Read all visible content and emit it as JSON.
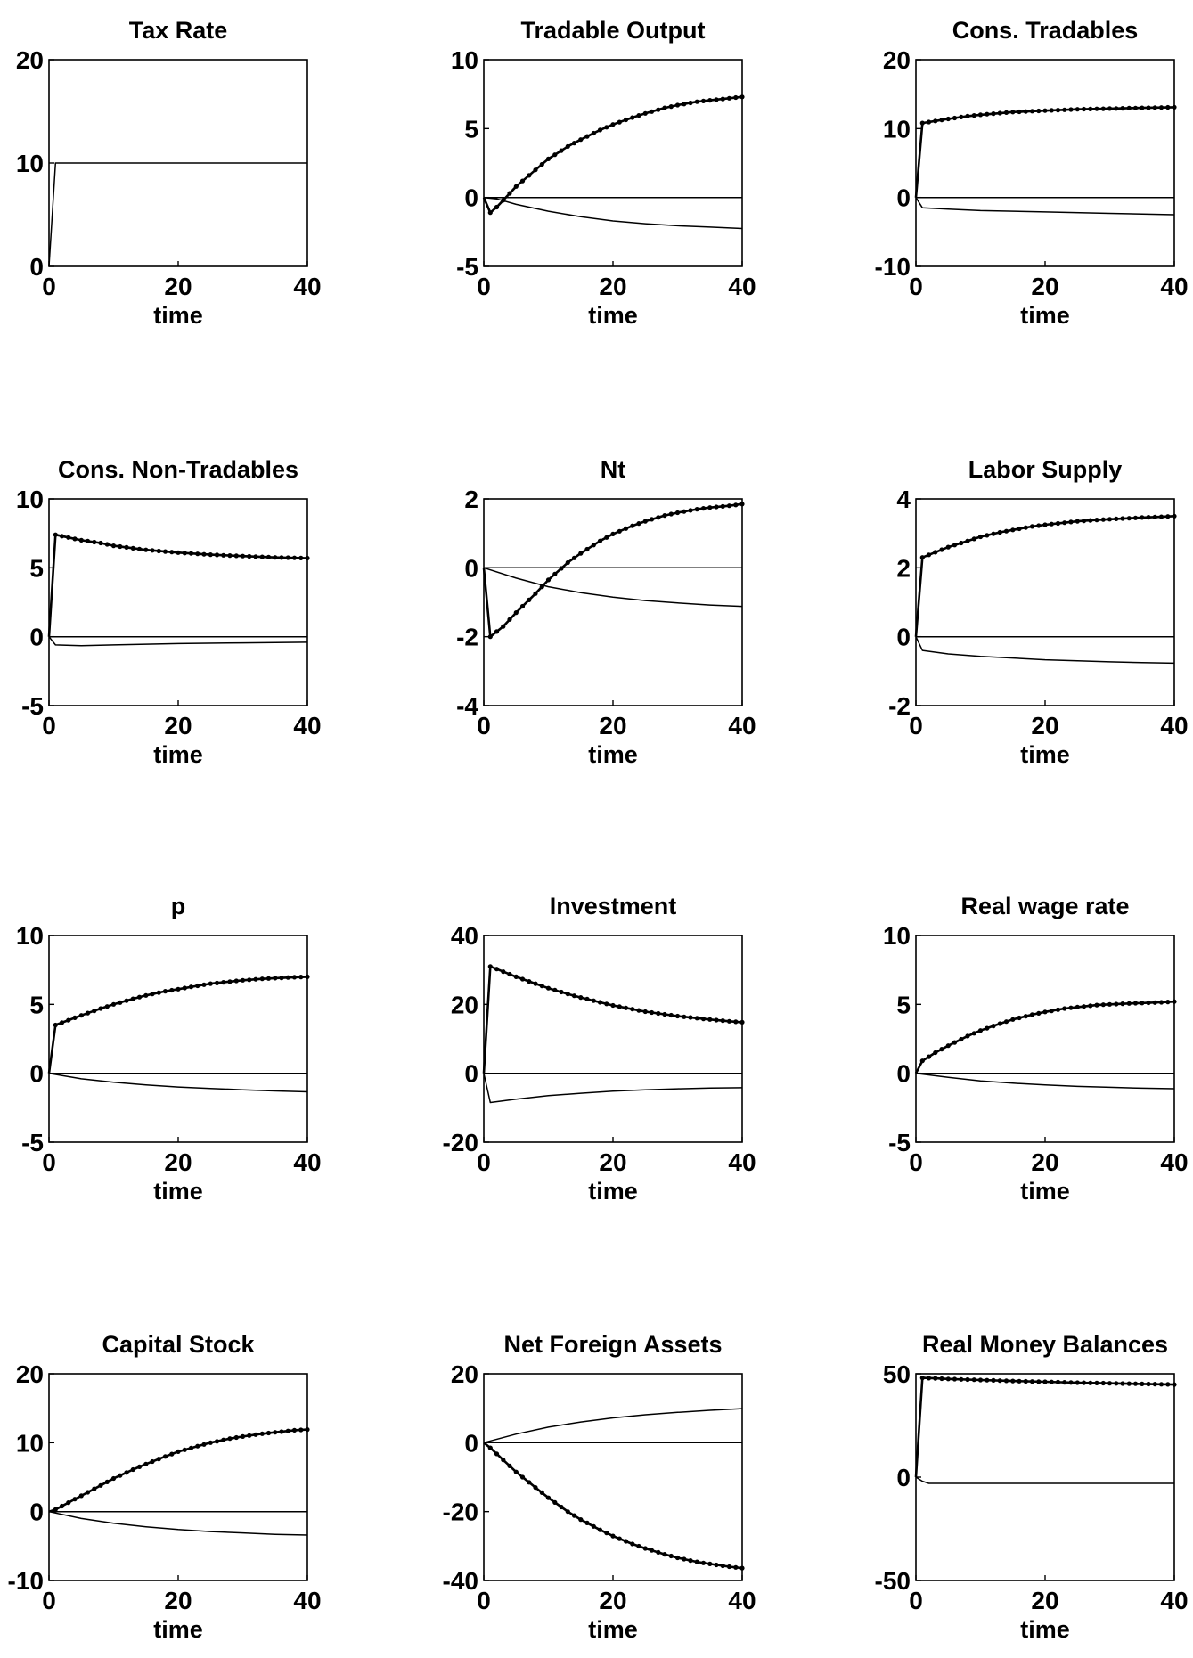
{
  "chart_data": [
    {
      "type": "line",
      "title": "Tax Rate",
      "xlabel": "time",
      "ylabel": "",
      "xlim": [
        0,
        40
      ],
      "ylim": [
        0,
        20
      ],
      "xticks": [
        0,
        20,
        40
      ],
      "yticks": [
        0,
        10,
        20
      ],
      "grid": false,
      "series": [
        {
          "style": "solid",
          "x": [
            0,
            1,
            40
          ],
          "y": [
            0,
            10,
            10
          ]
        }
      ]
    },
    {
      "type": "line",
      "title": "Tradable Output",
      "xlabel": "time",
      "ylabel": "",
      "xlim": [
        0,
        40
      ],
      "ylim": [
        -5,
        10
      ],
      "xticks": [
        0,
        20,
        40
      ],
      "yticks": [
        -5,
        0,
        5,
        10
      ],
      "grid": false,
      "series": [
        {
          "style": "solid",
          "x": [
            0,
            40
          ],
          "y": [
            0,
            0
          ]
        },
        {
          "style": "solid",
          "x": [
            0,
            2,
            5,
            10,
            15,
            20,
            25,
            30,
            35,
            40
          ],
          "y": [
            0,
            -0.1,
            -0.5,
            -1.0,
            -1.4,
            -1.7,
            -1.9,
            -2.05,
            -2.15,
            -2.25
          ]
        },
        {
          "style": "dotted-markers",
          "x": [
            0,
            1,
            2,
            3,
            5,
            8,
            10,
            13,
            15,
            18,
            20,
            23,
            25,
            28,
            30,
            33,
            35,
            38,
            40
          ],
          "y": [
            0,
            -1.1,
            -0.7,
            -0.2,
            0.8,
            2.0,
            2.8,
            3.7,
            4.2,
            4.9,
            5.3,
            5.8,
            6.1,
            6.5,
            6.7,
            6.95,
            7.05,
            7.2,
            7.3
          ]
        }
      ]
    },
    {
      "type": "line",
      "title": "Cons. Tradables",
      "xlabel": "time",
      "ylabel": "",
      "xlim": [
        0,
        40
      ],
      "ylim": [
        -10,
        20
      ],
      "xticks": [
        0,
        20,
        40
      ],
      "yticks": [
        -10,
        0,
        10,
        20
      ],
      "grid": false,
      "series": [
        {
          "style": "solid",
          "x": [
            0,
            40
          ],
          "y": [
            0,
            0
          ]
        },
        {
          "style": "solid",
          "x": [
            0,
            1,
            5,
            10,
            20,
            30,
            40
          ],
          "y": [
            0,
            -1.5,
            -1.7,
            -1.9,
            -2.1,
            -2.3,
            -2.5
          ]
        },
        {
          "style": "dotted-markers",
          "x": [
            0,
            1,
            3,
            5,
            8,
            10,
            15,
            20,
            25,
            30,
            35,
            40
          ],
          "y": [
            0,
            10.8,
            11.1,
            11.4,
            11.8,
            12.0,
            12.4,
            12.6,
            12.8,
            12.9,
            13.0,
            13.1
          ]
        }
      ]
    },
    {
      "type": "line",
      "title": "Cons. Non-Tradables",
      "xlabel": "time",
      "ylabel": "",
      "xlim": [
        0,
        40
      ],
      "ylim": [
        -5,
        10
      ],
      "xticks": [
        0,
        20,
        40
      ],
      "yticks": [
        -5,
        0,
        5,
        10
      ],
      "grid": false,
      "series": [
        {
          "style": "solid",
          "x": [
            0,
            40
          ],
          "y": [
            0,
            0
          ]
        },
        {
          "style": "solid",
          "x": [
            0,
            1,
            5,
            10,
            20,
            30,
            40
          ],
          "y": [
            0,
            -0.6,
            -0.65,
            -0.6,
            -0.5,
            -0.45,
            -0.4
          ]
        },
        {
          "style": "dotted-markers",
          "x": [
            0,
            1,
            3,
            5,
            8,
            10,
            15,
            20,
            25,
            30,
            35,
            40
          ],
          "y": [
            0,
            7.4,
            7.2,
            7.0,
            6.8,
            6.6,
            6.3,
            6.1,
            5.95,
            5.85,
            5.75,
            5.7
          ]
        }
      ]
    },
    {
      "type": "line",
      "title": "Nt",
      "xlabel": "time",
      "ylabel": "",
      "xlim": [
        0,
        40
      ],
      "ylim": [
        -4,
        2
      ],
      "xticks": [
        0,
        20,
        40
      ],
      "yticks": [
        -4,
        -2,
        0,
        2
      ],
      "grid": false,
      "series": [
        {
          "style": "solid",
          "x": [
            0,
            40
          ],
          "y": [
            0,
            0
          ]
        },
        {
          "style": "solid",
          "x": [
            0,
            5,
            10,
            15,
            20,
            25,
            30,
            35,
            40
          ],
          "y": [
            0,
            -0.3,
            -0.55,
            -0.72,
            -0.85,
            -0.95,
            -1.02,
            -1.08,
            -1.12
          ]
        },
        {
          "style": "dotted-markers",
          "x": [
            0,
            1,
            3,
            5,
            8,
            10,
            13,
            15,
            18,
            20,
            23,
            25,
            28,
            30,
            33,
            35,
            38,
            40
          ],
          "y": [
            0,
            -2.0,
            -1.7,
            -1.3,
            -0.75,
            -0.35,
            0.15,
            0.42,
            0.78,
            0.98,
            1.22,
            1.35,
            1.52,
            1.6,
            1.7,
            1.75,
            1.8,
            1.85
          ]
        }
      ]
    },
    {
      "type": "line",
      "title": "Labor Supply",
      "xlabel": "time",
      "ylabel": "",
      "xlim": [
        0,
        40
      ],
      "ylim": [
        -2,
        4
      ],
      "xticks": [
        0,
        20,
        40
      ],
      "yticks": [
        -2,
        0,
        2,
        4
      ],
      "grid": false,
      "series": [
        {
          "style": "solid",
          "x": [
            0,
            40
          ],
          "y": [
            0,
            0
          ]
        },
        {
          "style": "solid",
          "x": [
            0,
            1,
            5,
            10,
            15,
            20,
            25,
            30,
            35,
            40
          ],
          "y": [
            0,
            -0.4,
            -0.5,
            -0.57,
            -0.62,
            -0.67,
            -0.7,
            -0.73,
            -0.75,
            -0.77
          ]
        },
        {
          "style": "dotted-markers",
          "x": [
            0,
            1,
            3,
            5,
            8,
            10,
            13,
            15,
            18,
            20,
            23,
            25,
            28,
            30,
            33,
            35,
            38,
            40
          ],
          "y": [
            0,
            2.3,
            2.45,
            2.6,
            2.78,
            2.9,
            3.03,
            3.1,
            3.2,
            3.25,
            3.31,
            3.35,
            3.39,
            3.41,
            3.44,
            3.46,
            3.48,
            3.5
          ]
        }
      ]
    },
    {
      "type": "line",
      "title": "p",
      "xlabel": "time",
      "ylabel": "",
      "xlim": [
        0,
        40
      ],
      "ylim": [
        -5,
        10
      ],
      "xticks": [
        0,
        20,
        40
      ],
      "yticks": [
        -5,
        0,
        5,
        10
      ],
      "grid": false,
      "series": [
        {
          "style": "solid",
          "x": [
            0,
            40
          ],
          "y": [
            0,
            0
          ]
        },
        {
          "style": "solid",
          "x": [
            0,
            5,
            10,
            15,
            20,
            25,
            30,
            35,
            40
          ],
          "y": [
            0,
            -0.4,
            -0.65,
            -0.85,
            -1.0,
            -1.1,
            -1.2,
            -1.28,
            -1.35
          ]
        },
        {
          "style": "dotted-markers",
          "x": [
            0,
            1,
            3,
            5,
            8,
            10,
            13,
            15,
            18,
            20,
            23,
            25,
            28,
            30,
            33,
            35,
            38,
            40
          ],
          "y": [
            0,
            3.5,
            3.85,
            4.2,
            4.7,
            5.0,
            5.4,
            5.65,
            5.95,
            6.1,
            6.35,
            6.5,
            6.65,
            6.75,
            6.85,
            6.9,
            6.97,
            7.0
          ]
        }
      ]
    },
    {
      "type": "line",
      "title": "Investment",
      "xlabel": "time",
      "ylabel": "",
      "xlim": [
        0,
        40
      ],
      "ylim": [
        -20,
        40
      ],
      "xticks": [
        0,
        20,
        40
      ],
      "yticks": [
        -20,
        0,
        20,
        40
      ],
      "grid": false,
      "series": [
        {
          "style": "solid",
          "x": [
            0,
            40
          ],
          "y": [
            0,
            0
          ]
        },
        {
          "style": "solid",
          "x": [
            0,
            1,
            5,
            10,
            15,
            20,
            25,
            30,
            35,
            40
          ],
          "y": [
            0,
            -8.5,
            -7.5,
            -6.5,
            -5.8,
            -5.2,
            -4.8,
            -4.5,
            -4.3,
            -4.2
          ]
        },
        {
          "style": "dotted-markers",
          "x": [
            0,
            1,
            3,
            5,
            8,
            10,
            13,
            15,
            18,
            20,
            23,
            25,
            28,
            30,
            33,
            35,
            38,
            40
          ],
          "y": [
            0,
            31,
            29.5,
            28,
            26,
            24.7,
            23,
            22,
            20.6,
            19.7,
            18.6,
            17.9,
            17.1,
            16.6,
            16.0,
            15.6,
            15.1,
            14.8
          ]
        }
      ]
    },
    {
      "type": "line",
      "title": "Real wage rate",
      "xlabel": "time",
      "ylabel": "",
      "xlim": [
        0,
        40
      ],
      "ylim": [
        -5,
        10
      ],
      "xticks": [
        0,
        20,
        40
      ],
      "yticks": [
        -5,
        0,
        5,
        10
      ],
      "grid": false,
      "series": [
        {
          "style": "solid",
          "x": [
            0,
            40
          ],
          "y": [
            0,
            0
          ]
        },
        {
          "style": "solid",
          "x": [
            0,
            5,
            10,
            15,
            20,
            25,
            30,
            35,
            40
          ],
          "y": [
            0,
            -0.3,
            -0.55,
            -0.72,
            -0.85,
            -0.95,
            -1.02,
            -1.08,
            -1.12
          ]
        },
        {
          "style": "dotted-markers",
          "x": [
            0,
            1,
            3,
            5,
            8,
            10,
            13,
            15,
            18,
            20,
            23,
            25,
            28,
            30,
            33,
            35,
            38,
            40
          ],
          "y": [
            0,
            0.9,
            1.5,
            2.0,
            2.7,
            3.1,
            3.6,
            3.9,
            4.25,
            4.45,
            4.7,
            4.8,
            4.95,
            5.0,
            5.07,
            5.1,
            5.15,
            5.2
          ]
        }
      ]
    },
    {
      "type": "line",
      "title": "Capital Stock",
      "xlabel": "time",
      "ylabel": "",
      "xlim": [
        0,
        40
      ],
      "ylim": [
        -10,
        20
      ],
      "xticks": [
        0,
        20,
        40
      ],
      "yticks": [
        -10,
        0,
        10,
        20
      ],
      "grid": false,
      "series": [
        {
          "style": "solid",
          "x": [
            0,
            40
          ],
          "y": [
            0,
            0
          ]
        },
        {
          "style": "solid",
          "x": [
            0,
            5,
            10,
            15,
            20,
            25,
            30,
            35,
            40
          ],
          "y": [
            0,
            -1.0,
            -1.7,
            -2.2,
            -2.6,
            -2.9,
            -3.1,
            -3.3,
            -3.4
          ]
        },
        {
          "style": "dotted-markers",
          "x": [
            0,
            1,
            3,
            5,
            8,
            10,
            13,
            15,
            18,
            20,
            23,
            25,
            28,
            30,
            33,
            35,
            38,
            40
          ],
          "y": [
            0,
            0.3,
            1.3,
            2.3,
            3.8,
            4.8,
            6.1,
            6.9,
            8.0,
            8.7,
            9.5,
            10.0,
            10.6,
            10.9,
            11.3,
            11.5,
            11.8,
            11.9
          ]
        }
      ]
    },
    {
      "type": "line",
      "title": "Net Foreign Assets",
      "xlabel": "time",
      "ylabel": "",
      "xlim": [
        0,
        40
      ],
      "ylim": [
        -40,
        20
      ],
      "xticks": [
        0,
        20,
        40
      ],
      "yticks": [
        -40,
        -20,
        0,
        20
      ],
      "grid": false,
      "series": [
        {
          "style": "solid",
          "x": [
            0,
            40
          ],
          "y": [
            0,
            0
          ]
        },
        {
          "style": "solid",
          "x": [
            0,
            5,
            10,
            15,
            20,
            25,
            30,
            35,
            40
          ],
          "y": [
            0,
            2.5,
            4.5,
            6.0,
            7.2,
            8.1,
            8.8,
            9.4,
            9.9
          ]
        },
        {
          "style": "dotted-markers",
          "x": [
            0,
            1,
            3,
            5,
            8,
            10,
            13,
            15,
            18,
            20,
            23,
            25,
            28,
            30,
            33,
            35,
            38,
            40
          ],
          "y": [
            0,
            -1.5,
            -5,
            -8.5,
            -13,
            -16,
            -20,
            -22.3,
            -25.3,
            -27.1,
            -29.4,
            -30.7,
            -32.4,
            -33.4,
            -34.6,
            -35.2,
            -36.0,
            -36.4
          ]
        }
      ]
    },
    {
      "type": "line",
      "title": "Real Money Balances",
      "xlabel": "time",
      "ylabel": "",
      "xlim": [
        0,
        40
      ],
      "ylim": [
        -50,
        50
      ],
      "xticks": [
        0,
        20,
        40
      ],
      "yticks": [
        -50,
        0,
        50
      ],
      "grid": false,
      "series": [
        {
          "style": "solid",
          "x": [
            0,
            1,
            2,
            40
          ],
          "y": [
            0,
            -2,
            -3,
            -3
          ]
        },
        {
          "style": "dotted-markers",
          "x": [
            0,
            1,
            3,
            5,
            10,
            15,
            20,
            25,
            30,
            35,
            40
          ],
          "y": [
            0,
            48,
            47.8,
            47.5,
            47,
            46.5,
            46.1,
            45.7,
            45.4,
            45.1,
            44.8
          ]
        }
      ]
    }
  ]
}
